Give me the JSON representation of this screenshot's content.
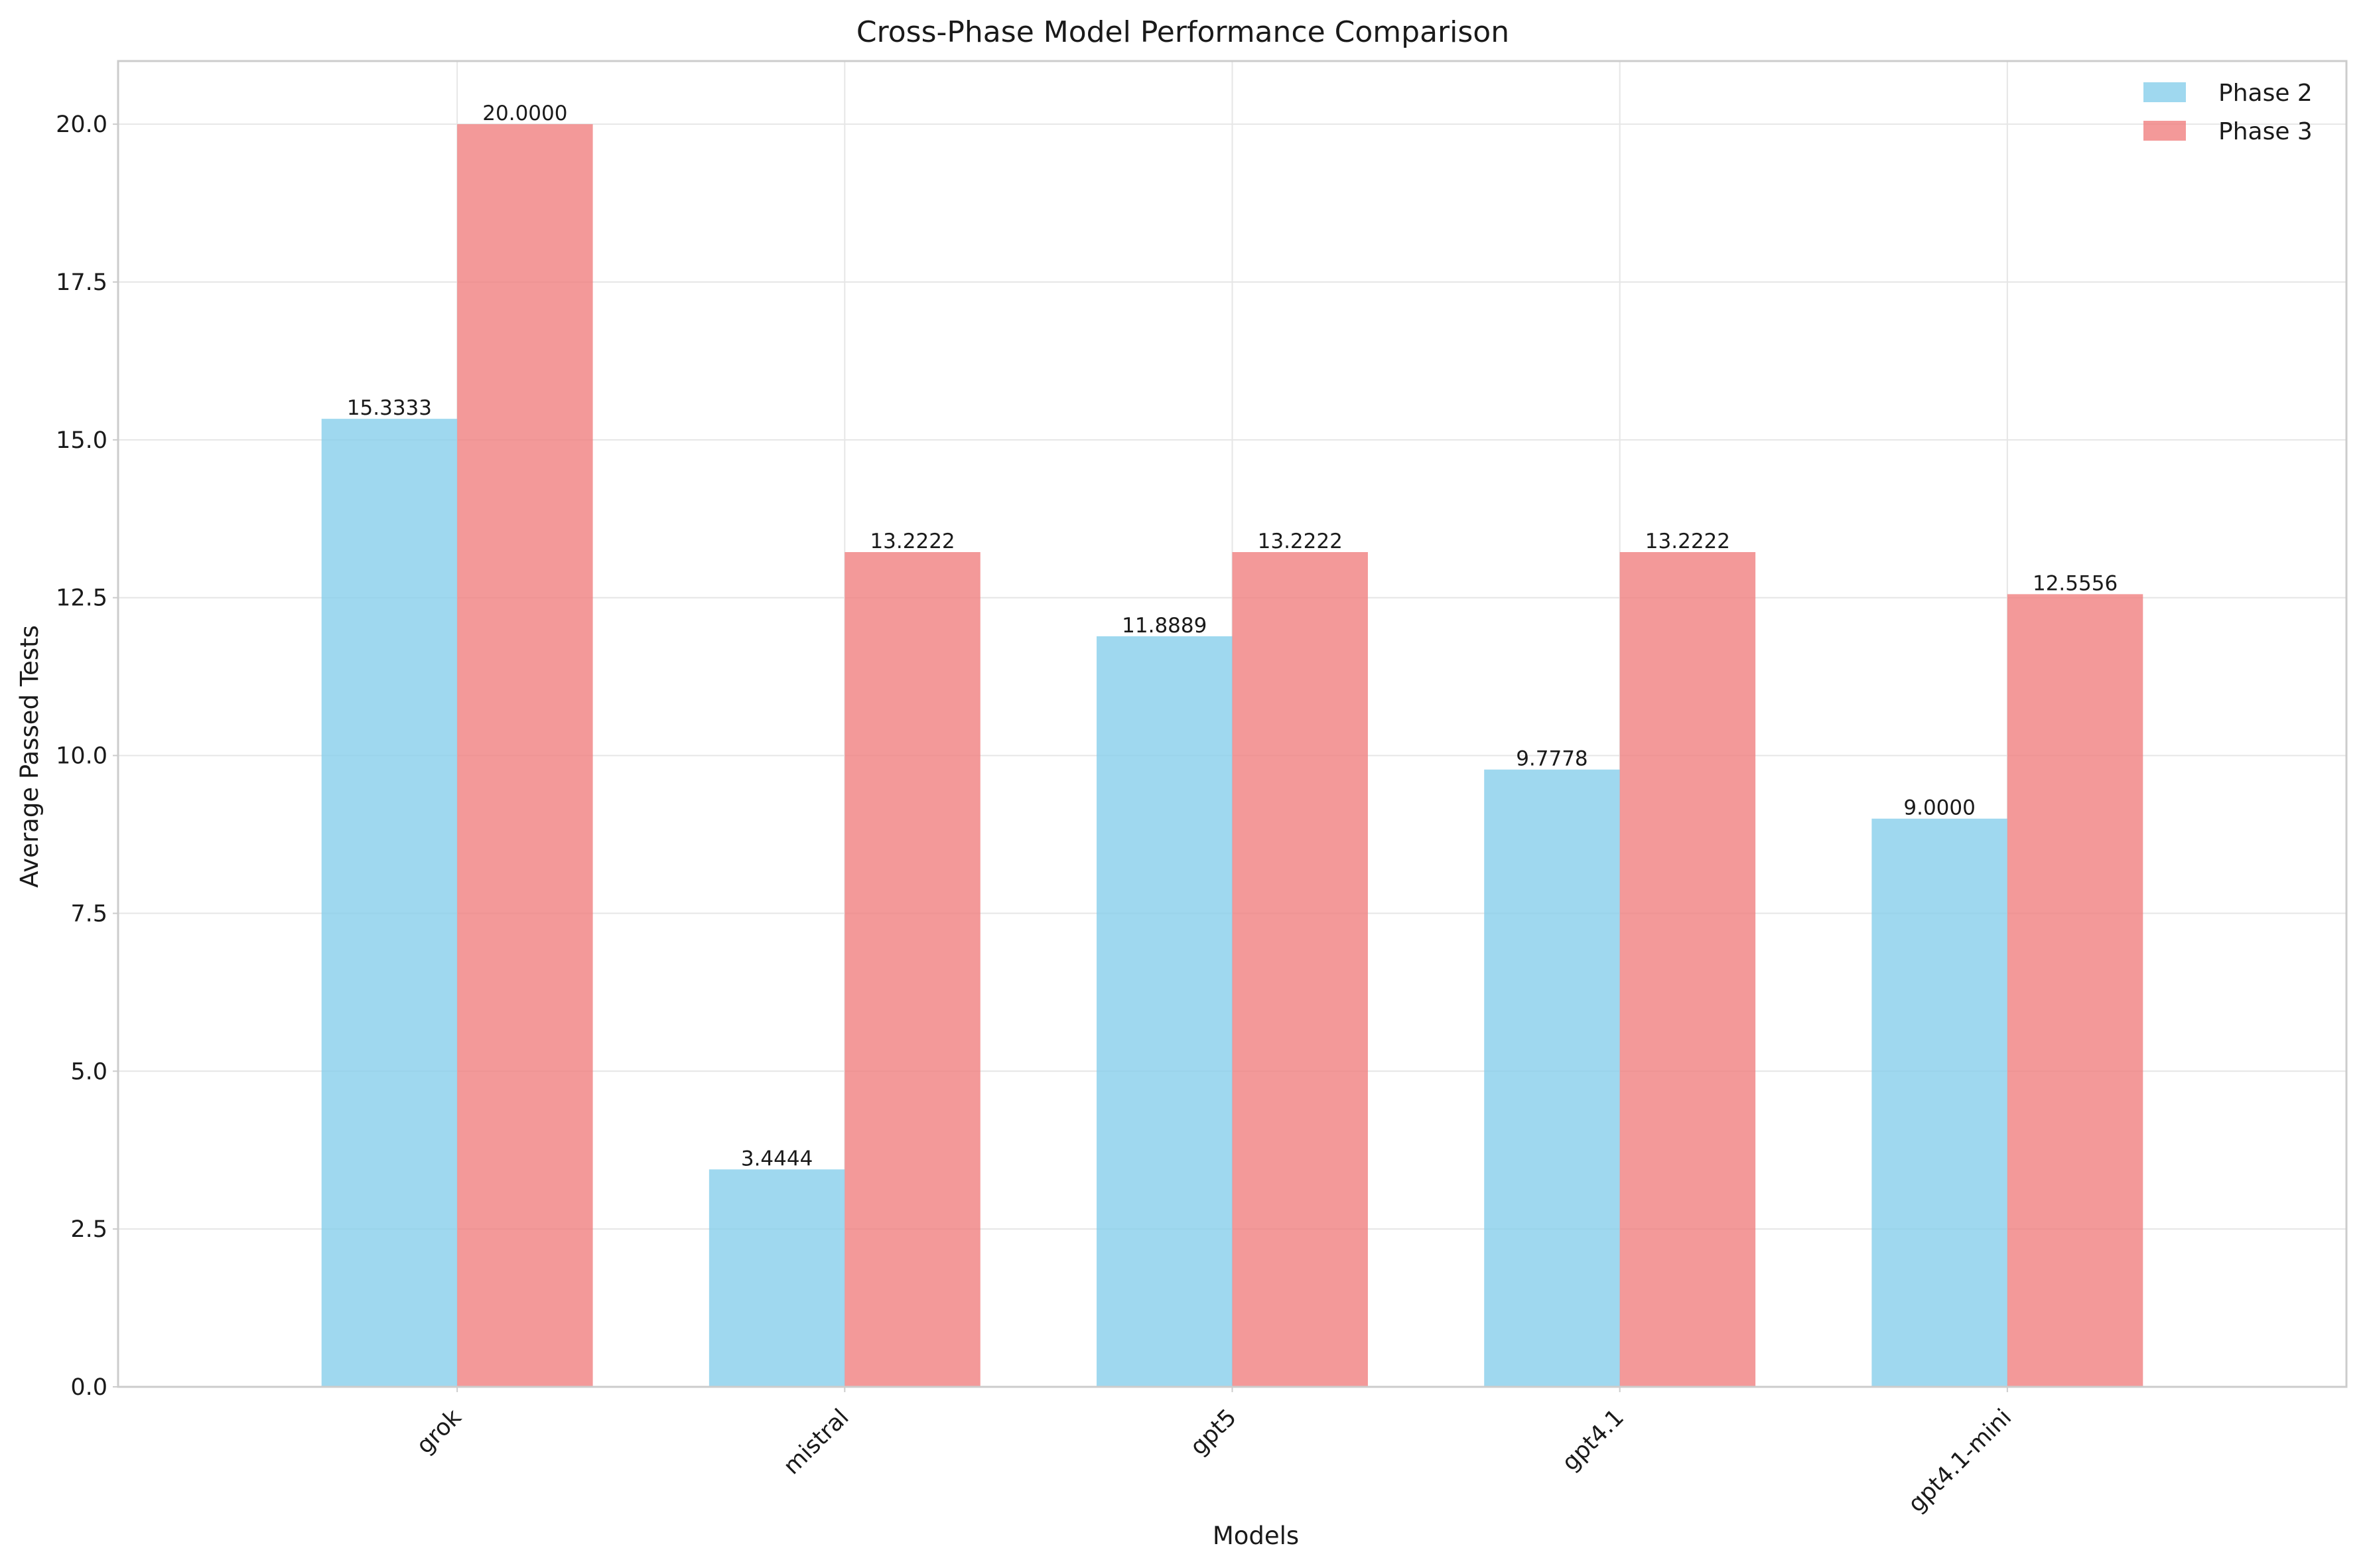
{
  "chart_data": {
    "type": "bar",
    "title": "Cross-Phase Model Performance Comparison",
    "xlabel": "Models",
    "ylabel": "Average Passed Tests",
    "categories": [
      "grok",
      "mistral",
      "gpt5",
      "gpt4.1",
      "gpt4.1-mini"
    ],
    "series": [
      {
        "name": "Phase 2",
        "color": "#87CEEB",
        "values": [
          15.3333,
          3.4444,
          11.8889,
          9.7778,
          9.0
        ],
        "labels": [
          "15.3333",
          "3.4444",
          "11.8889",
          "9.7778",
          "9.0000"
        ]
      },
      {
        "name": "Phase 3",
        "color": "#F08080",
        "values": [
          20.0,
          13.2222,
          13.2222,
          13.2222,
          12.5556
        ],
        "labels": [
          "20.0000",
          "13.2222",
          "13.2222",
          "13.2222",
          "12.5556"
        ]
      }
    ],
    "ylim": [
      0,
      21
    ],
    "yticks": [
      0,
      2.5,
      5,
      7.5,
      10,
      12.5,
      15,
      17.5,
      20
    ],
    "ytick_labels": [
      "0.0",
      "2.5",
      "5.0",
      "7.5",
      "10.0",
      "12.5",
      "15.0",
      "17.5",
      "20.0"
    ],
    "grid": true,
    "legend_position": "top-right",
    "xtick_rotation": 45
  }
}
